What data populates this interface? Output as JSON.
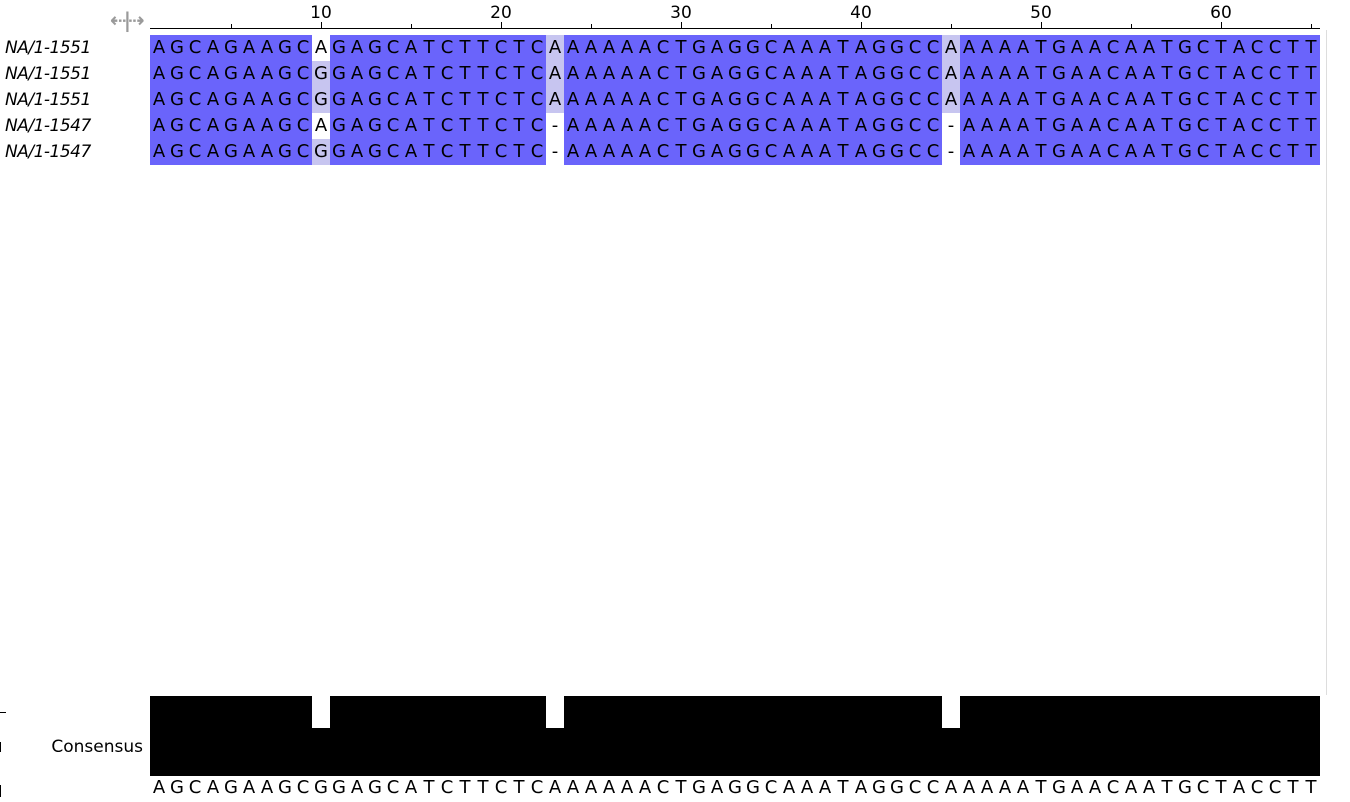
{
  "toolbar": {
    "toggle_icon": "⇠|⇢"
  },
  "ruler": {
    "labels": [
      "10",
      "20",
      "30",
      "40",
      "50",
      "60"
    ]
  },
  "sequences": [
    {
      "name": "NA/1-1551",
      "seq": "AGCAGAAGCAGAGCATCTTCTCAAAAAACTGAGGCAAATAGGCCAAAAATGAACAATGCTACCTT"
    },
    {
      "name": "NA/1-1551",
      "seq": "AGCAGAAGCGGAGCATCTTCTCAAAAAACTGAGGCAAATAGGCCAAAAATGAACAATGCTACCTT"
    },
    {
      "name": "NA/1-1551",
      "seq": "AGCAGAAGCGGAGCATCTTCTCAAAAAACTGAGGCAAATAGGCCAAAAATGAACAATGCTACCTT"
    },
    {
      "name": "NA/1-1547",
      "seq": "AGCAGAAGCAGAGCATCTTCTC-AAAAACTGAGGCAAATAGGCC-AAAATGAACAATGCTACCTT"
    },
    {
      "name": "NA/1-1547",
      "seq": "AGCAGAAGCGGAGCATCTTCTC-AAAAACTGAGGCAAATAGGCC-AAAATGAACAATGCTACCTT"
    }
  ],
  "consensus": {
    "label": "Consensus",
    "sequence": "AGCAGAAGCGGAGCATCTTCTCAAAAAACTGAGGCAAATAGGCCAAAAATGAACAATGCTACCTT"
  },
  "colors": {
    "identity_full": "#6a64fb",
    "identity_partial": "#c7c5f0",
    "consensus_bar": "#000000"
  }
}
